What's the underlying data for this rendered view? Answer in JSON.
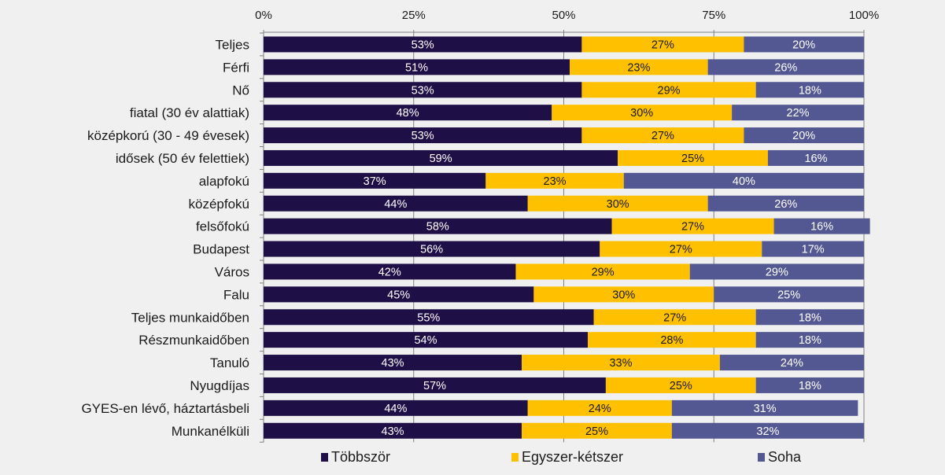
{
  "chart_data": {
    "type": "bar",
    "orientation": "horizontal",
    "stacked": "percent",
    "title": "",
    "xlabel": "",
    "ylabel": "",
    "xlim": [
      0,
      100
    ],
    "x_ticks": [
      "0%",
      "25%",
      "50%",
      "75%",
      "100%"
    ],
    "x_axis_position": "top",
    "grid": true,
    "legend_position": "bottom",
    "categories": [
      "Teljes",
      "Férfi",
      "Nő",
      "fiatal (30 év alattiak)",
      "középkorú (30 - 49 évesek)",
      "idősek (50 év felettiek)",
      "alapfokú",
      "középfokú",
      "felsőfokú",
      "Budapest",
      "Város",
      "Falu",
      "Teljes munkaidőben",
      "Részmunkaidőben",
      "Tanuló",
      "Nyugdíjas",
      "GYES-en lévő, háztartásbeli",
      "Munkanélküli"
    ],
    "series": [
      {
        "name": "Többször",
        "color": "#1e0f47",
        "label_color": "#ffffff",
        "values": [
          53,
          51,
          53,
          48,
          53,
          59,
          37,
          44,
          58,
          56,
          42,
          45,
          55,
          54,
          43,
          57,
          44,
          43
        ]
      },
      {
        "name": "Egyszer-kétszer",
        "color": "#ffc000",
        "label_color": "#1a1a1a",
        "values": [
          27,
          23,
          29,
          30,
          27,
          25,
          23,
          30,
          27,
          27,
          29,
          30,
          27,
          28,
          33,
          25,
          24,
          25
        ]
      },
      {
        "name": "Soha",
        "color": "#535892",
        "label_color": "#ffffff",
        "values": [
          20,
          26,
          18,
          22,
          20,
          16,
          40,
          26,
          16,
          17,
          29,
          25,
          18,
          18,
          24,
          18,
          31,
          32
        ]
      }
    ]
  },
  "colors": {
    "background": "#f0f0f0",
    "gridline": "#808080",
    "axis": "#808080"
  }
}
